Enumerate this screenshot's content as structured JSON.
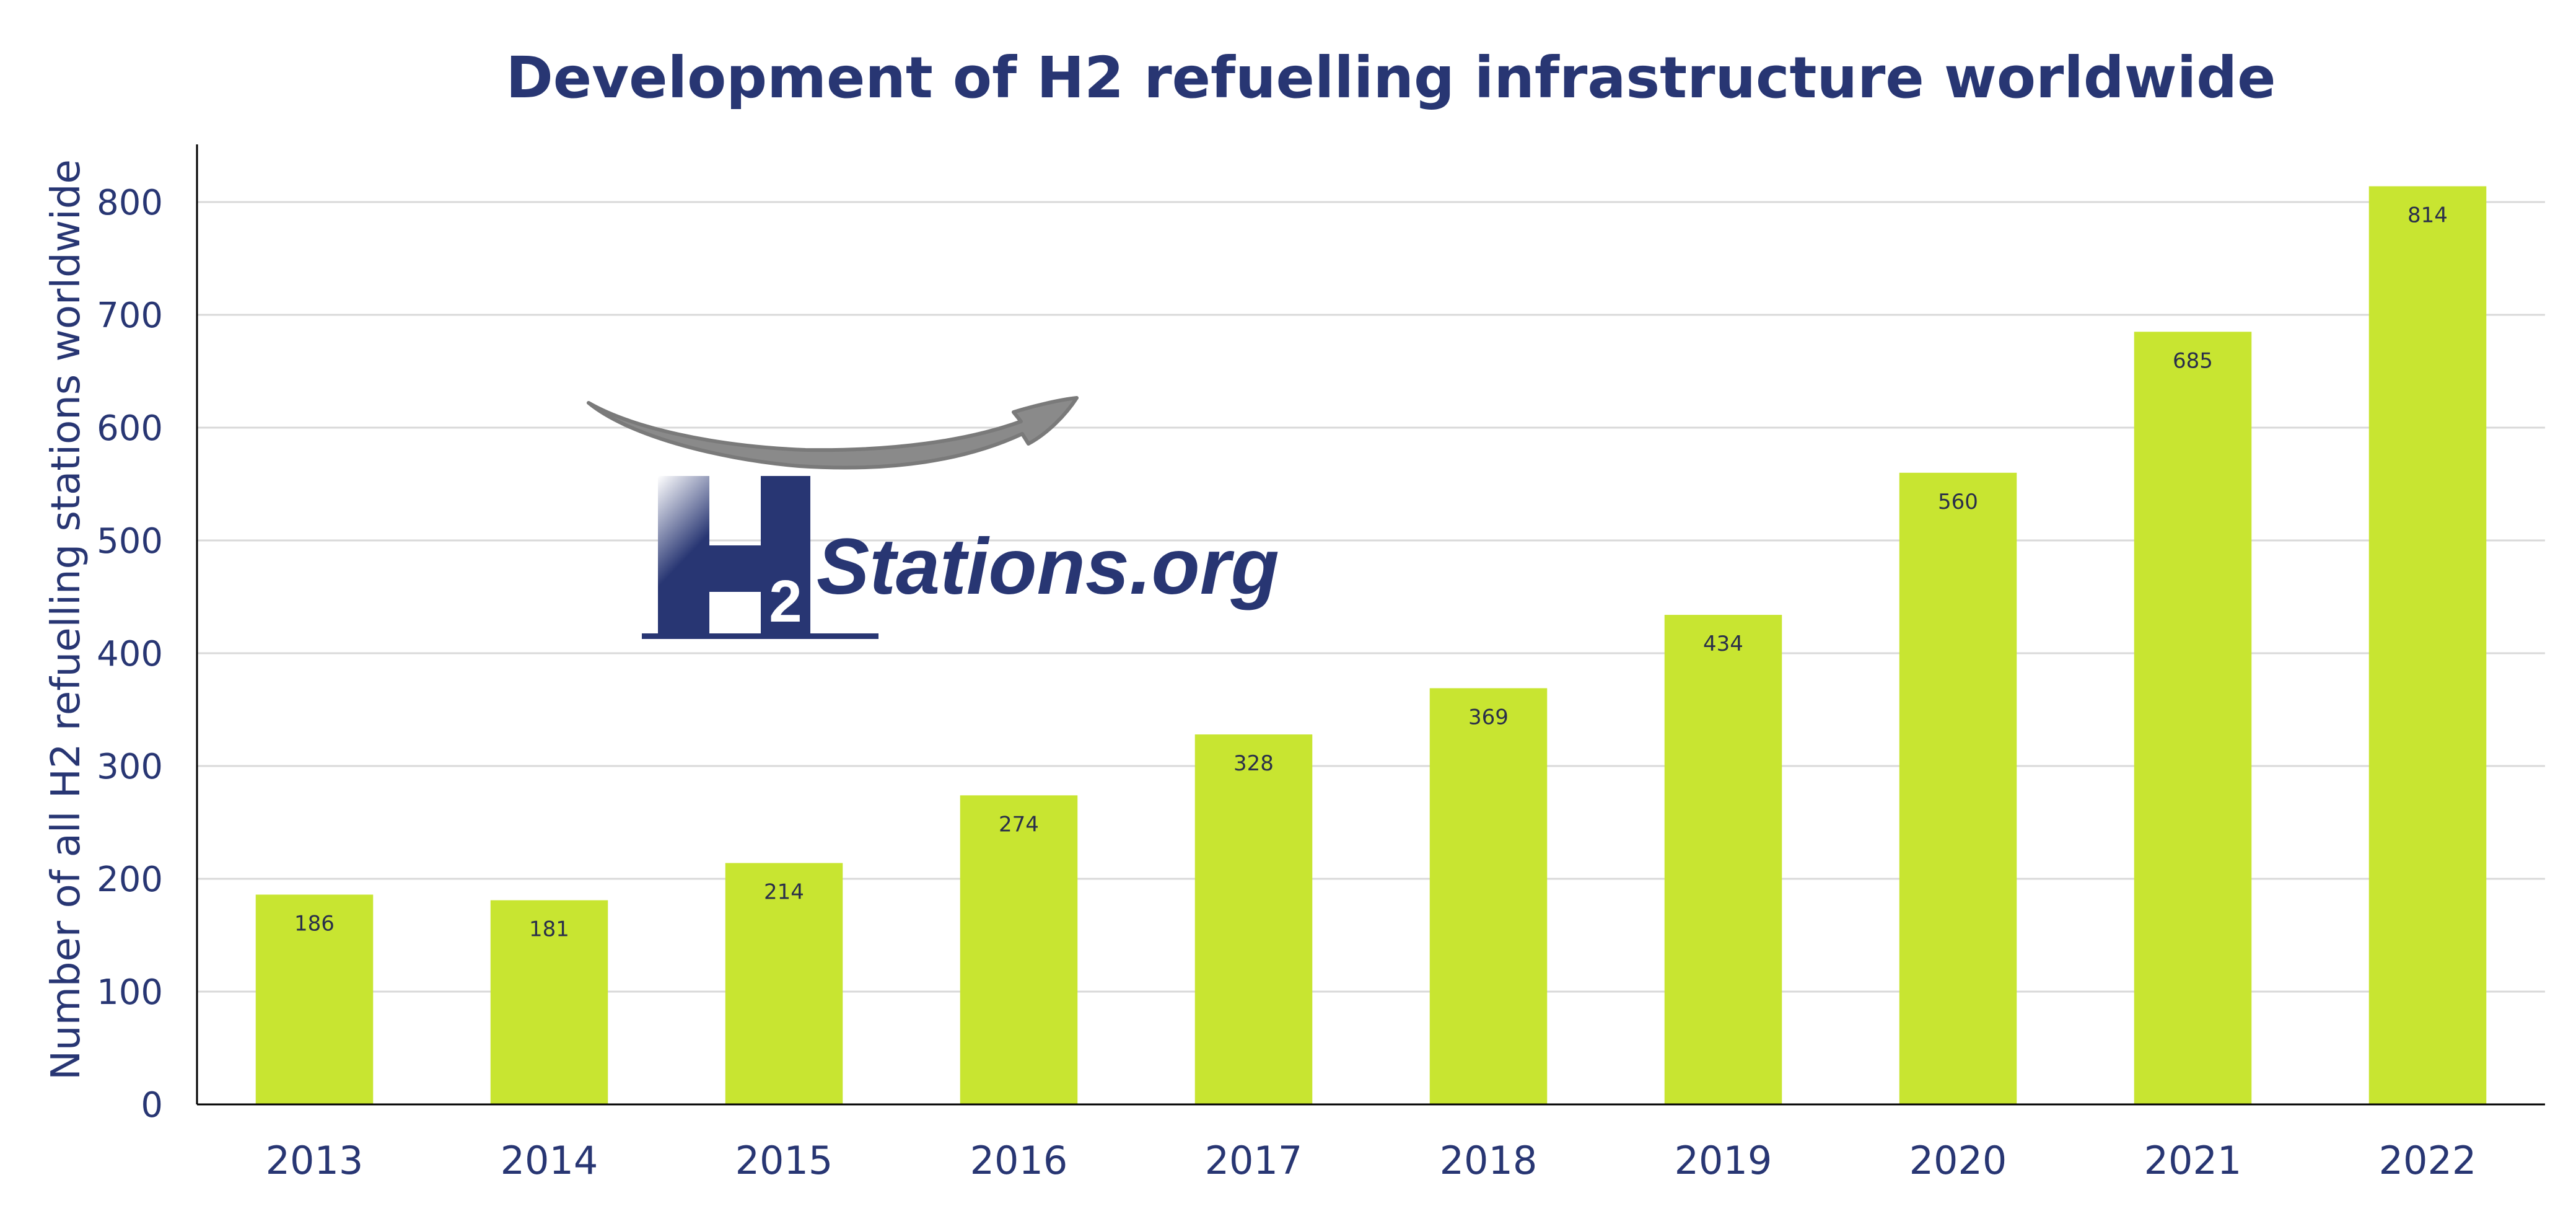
{
  "colors": {
    "title": "#283673",
    "bar": "#c8e531",
    "grid": "#d9d9d9",
    "axis": "#000000",
    "logo_blue": "#283673",
    "logo_arrow": "#8a8a8a"
  },
  "logo": {
    "letter": "H",
    "subscript": "2",
    "text": "Stations.org"
  },
  "chart_data": {
    "type": "bar",
    "title": "Development of H2 refuelling infrastructure worldwide",
    "xlabel": "",
    "ylabel": "Number of all H2 refuelling stations worldwide",
    "categories": [
      "2013",
      "2014",
      "2015",
      "2016",
      "2017",
      "2018",
      "2019",
      "2020",
      "2021",
      "2022"
    ],
    "values": [
      186,
      181,
      214,
      274,
      328,
      369,
      434,
      560,
      685,
      814
    ],
    "data_labels": [
      "186",
      "181",
      "214",
      "274",
      "328",
      "369",
      "434",
      "560",
      "685",
      "814"
    ],
    "ylim": [
      0,
      850
    ],
    "yticks": [
      0,
      100,
      200,
      300,
      400,
      500,
      600,
      700,
      800
    ],
    "ytick_labels": [
      "0",
      "100",
      "200",
      "300",
      "400",
      "500",
      "600",
      "700",
      "800"
    ],
    "grid": true,
    "legend": "none"
  }
}
